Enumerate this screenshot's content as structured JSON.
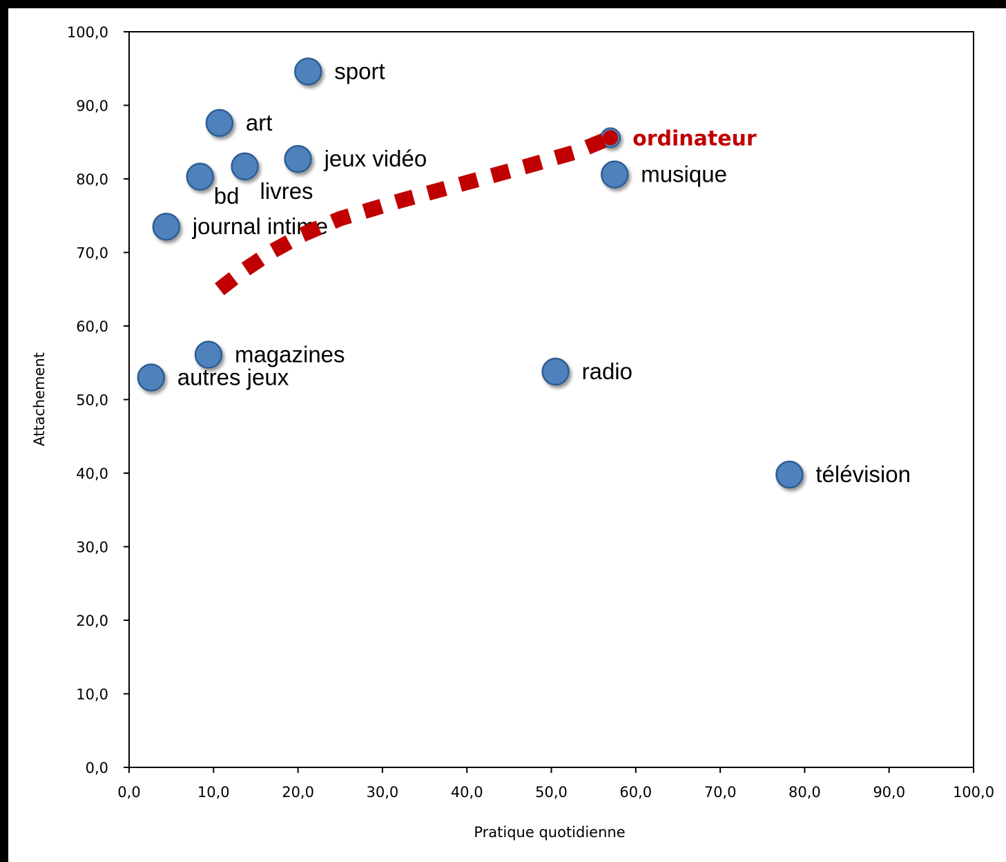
{
  "chart_data": {
    "type": "scatter",
    "xlabel": "Pratique quotidienne",
    "ylabel": "Attachement",
    "xlim": [
      0,
      100
    ],
    "ylim": [
      0,
      100
    ],
    "x_ticks": [
      "0,0",
      "10,0",
      "20,0",
      "30,0",
      "40,0",
      "50,0",
      "60,0",
      "70,0",
      "80,0",
      "90,0",
      "100,0"
    ],
    "y_ticks": [
      "0,0",
      "10,0",
      "20,0",
      "30,0",
      "40,0",
      "50,0",
      "60,0",
      "70,0",
      "80,0",
      "90,0",
      "100,0"
    ],
    "grid": false,
    "points": [
      {
        "label": "sport",
        "x": 21.2,
        "y": 94.6
      },
      {
        "label": "art",
        "x": 10.7,
        "y": 87.6
      },
      {
        "label": "jeux vidéo",
        "x": 20.0,
        "y": 82.7
      },
      {
        "label": "livres",
        "x": 13.7,
        "y": 81.7
      },
      {
        "label": "bd",
        "x": 8.4,
        "y": 80.3
      },
      {
        "label": "journal intime",
        "x": 4.4,
        "y": 73.5
      },
      {
        "label": "magazines",
        "x": 9.4,
        "y": 56.1
      },
      {
        "label": "autres jeux",
        "x": 2.6,
        "y": 53.0
      },
      {
        "label": "radio",
        "x": 50.5,
        "y": 53.8
      },
      {
        "label": "télévision",
        "x": 78.2,
        "y": 39.8
      },
      {
        "label": "musique",
        "x": 57.5,
        "y": 80.6
      },
      {
        "label": "ordinateur",
        "x": 57.0,
        "y": 85.6,
        "highlight": true
      }
    ],
    "trend": {
      "x": [
        10.7,
        13.5,
        17.0,
        20.5,
        25.0,
        32.0,
        40.0,
        47.0,
        53.0,
        57.0
      ],
      "y": [
        65.0,
        67.5,
        70.2,
        72.4,
        74.6,
        77.0,
        79.5,
        81.7,
        83.7,
        85.6
      ]
    },
    "colors": {
      "point": "#4f81bd",
      "point_edge": "#2e5d92",
      "highlight": "#c00000",
      "trend": "#c00000"
    }
  }
}
